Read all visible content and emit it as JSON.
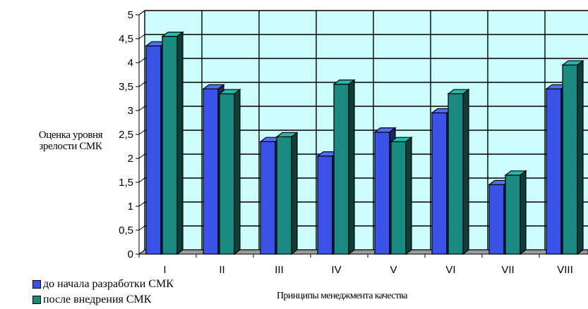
{
  "chart_data": {
    "type": "bar",
    "categories": [
      "I",
      "II",
      "III",
      "IV",
      "V",
      "VI",
      "VII",
      "VIII"
    ],
    "series": [
      {
        "name": "до начала разработки СМК",
        "values": [
          4.35,
          3.45,
          2.35,
          2.05,
          2.55,
          2.95,
          1.45,
          3.45
        ],
        "color": "#3a52e6"
      },
      {
        "name": "после внедрения СМК",
        "values": [
          4.55,
          3.35,
          2.45,
          3.55,
          2.35,
          3.35,
          1.65,
          3.95
        ],
        "color": "#1a8a80"
      }
    ],
    "yticks": [
      "0",
      "0,5",
      "1",
      "1,5",
      "2",
      "2,5",
      "3",
      "3,5",
      "4",
      "4,5",
      "5"
    ],
    "ylim": [
      0,
      5
    ],
    "ylabel_lines": [
      "Оценка уровня",
      "зрелости СМК"
    ],
    "xlabel": "Принципы менеджмента качества",
    "grid": true,
    "legend_position": "bottom-left",
    "plot_background": "#ccfcfc"
  }
}
